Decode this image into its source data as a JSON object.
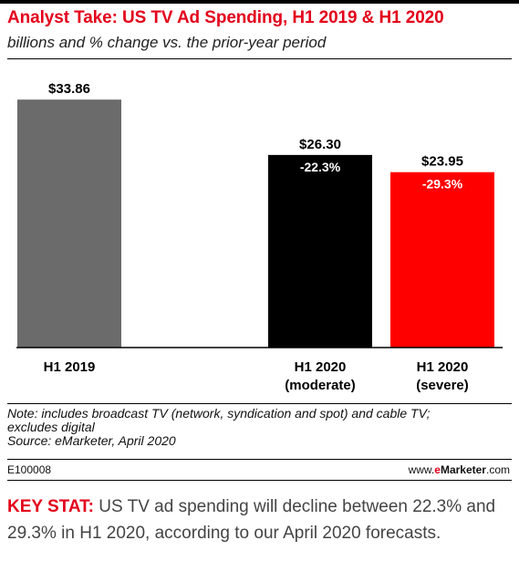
{
  "chart_data": {
    "type": "bar",
    "title": "Analyst Take: US TV Ad Spending, H1 2019 & H1 2020",
    "subtitle": "billions and % change vs. the prior-year period",
    "categories": [
      [
        "H1 2019"
      ],
      [
        "H1 2020",
        "(moderate)"
      ],
      [
        "H1 2020",
        "(severe)"
      ]
    ],
    "values": [
      33.86,
      26.3,
      23.95
    ],
    "value_labels": [
      "$33.86",
      "$26.30",
      "$23.95"
    ],
    "pct_labels": [
      "",
      "-22.3%",
      "-29.3%"
    ],
    "colors": [
      "#6b6b6b",
      "#000000",
      "#ff0000"
    ],
    "ylim": [
      0,
      36
    ],
    "grid": false,
    "legend": "none"
  },
  "notes": {
    "line1": "Note: includes broadcast TV (network, syndication and spot) and cable TV;",
    "line2": "excludes digital",
    "source": "Source: eMarketer, April 2020"
  },
  "footer": {
    "id": "E100008",
    "site_prefix": "www.",
    "site_brand_e": "e",
    "site_brand_rest": "Marketer",
    "site_suffix": ".com"
  },
  "key_stat": {
    "label": "KEY STAT:",
    "text": " US TV ad spending will decline between 22.3% and 29.3% in H1 2020, according to our April 2020 forecasts."
  }
}
